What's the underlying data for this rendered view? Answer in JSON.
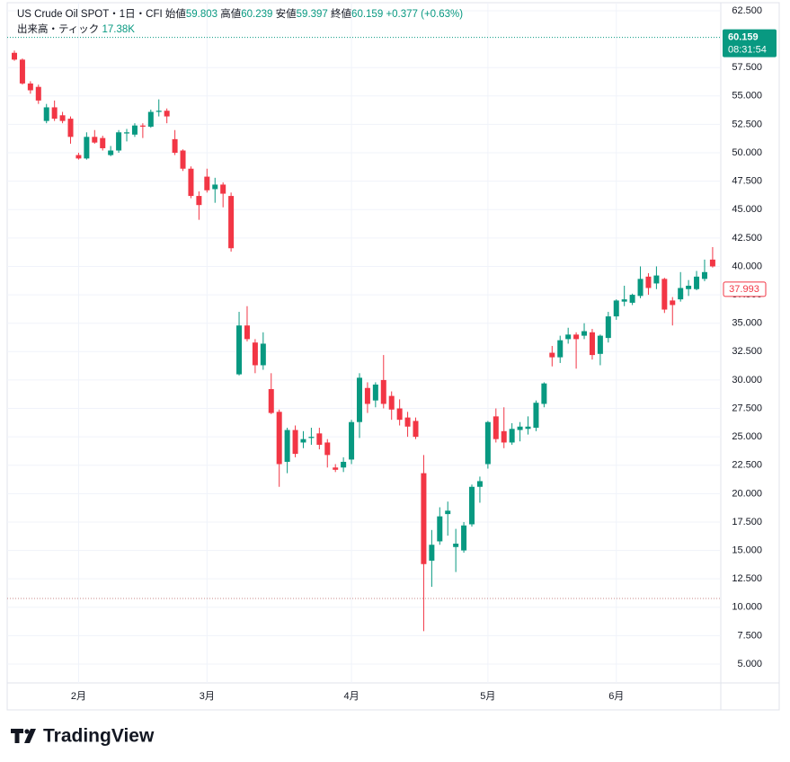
{
  "chart_data": {
    "type": "candlestick",
    "title": "US Crude Oil SPOT・1日・CFI",
    "legend": {
      "open_label": "始値",
      "open": 59.803,
      "high_label": "高値",
      "high": 60.239,
      "low_label": "安値",
      "low": 59.397,
      "close_label": "終値",
      "close": 60.159,
      "change": "+0.377 (+0.63%)"
    },
    "volume_label": "出来高・ティック",
    "volume": "17.38K",
    "last_price": {
      "value": 60.159,
      "time": "08:31:54"
    },
    "marker_price": 37.993,
    "dashed_level": 10.77,
    "up_color": "#089981",
    "down_color": "#f23645",
    "grid": true,
    "ylim": [
      3.34,
      63.21
    ],
    "yticks": [
      {
        "value": 62.5,
        "label": "62.500"
      },
      {
        "value": 57.5,
        "label": "57.500"
      },
      {
        "value": 55,
        "label": "55.000"
      },
      {
        "value": 52.5,
        "label": "52.500"
      },
      {
        "value": 50,
        "label": "50.000"
      },
      {
        "value": 47.5,
        "label": "47.500"
      },
      {
        "value": 45,
        "label": "45.000"
      },
      {
        "value": 42.5,
        "label": "42.500"
      },
      {
        "value": 40,
        "label": "40.000"
      },
      {
        "value": 37.5,
        "label": "37.500"
      },
      {
        "value": 35,
        "label": "35.000"
      },
      {
        "value": 32.5,
        "label": "32.500"
      },
      {
        "value": 30,
        "label": "30.000"
      },
      {
        "value": 27.5,
        "label": "27.500"
      },
      {
        "value": 25,
        "label": "25.000"
      },
      {
        "value": 22.5,
        "label": "22.500"
      },
      {
        "value": 20,
        "label": "20.000"
      },
      {
        "value": 17.5,
        "label": "17.500"
      },
      {
        "value": 15,
        "label": "15.000"
      },
      {
        "value": 12.5,
        "label": "12.500"
      },
      {
        "value": 10,
        "label": "10.000"
      },
      {
        "value": 7.5,
        "label": "7.500"
      },
      {
        "value": 5,
        "label": "5.000"
      }
    ],
    "categories": [
      null,
      null,
      null,
      null,
      null,
      null,
      null,
      null,
      "2月",
      null,
      null,
      null,
      null,
      null,
      null,
      null,
      null,
      null,
      null,
      null,
      null,
      null,
      null,
      null,
      "3月",
      null,
      null,
      null,
      null,
      null,
      null,
      null,
      null,
      null,
      null,
      null,
      null,
      null,
      null,
      null,
      null,
      null,
      "4月",
      null,
      null,
      null,
      null,
      null,
      null,
      null,
      null,
      null,
      null,
      null,
      null,
      null,
      null,
      null,
      null,
      "5月",
      null,
      null,
      null,
      null,
      null,
      null,
      null,
      null,
      null,
      null,
      null,
      null,
      null,
      null,
      null,
      "6月",
      null,
      null,
      null,
      null,
      null,
      null,
      null,
      null,
      null,
      null,
      null,
      null
    ],
    "open": [
      58.8,
      58.2,
      56.1,
      55.8,
      52.8,
      54.0,
      53.3,
      53.0,
      49.8,
      49.5,
      51.4,
      51.3,
      49.8,
      50.2,
      51.7,
      51.6,
      52.4,
      52.3,
      53.6,
      53.7,
      51.2,
      50.2,
      48.6,
      46.2,
      47.9,
      46.8,
      47.2,
      46.2,
      30.5,
      34.8,
      33.3,
      31.3,
      29.2,
      27.2,
      22.8,
      25.6,
      24.5,
      24.9,
      25.3,
      24.5,
      22.3,
      22.3,
      23.0,
      26.3,
      29.3,
      28.2,
      30.0,
      28.6,
      27.5,
      26.7,
      26.4,
      21.8,
      14.1,
      15.8,
      18.2,
      15.3,
      15.0,
      17.3,
      20.6,
      22.6,
      26.8,
      25.5,
      24.5,
      25.6,
      25.7,
      25.8,
      27.9,
      32.4,
      32.0,
      33.6,
      34.0,
      33.9,
      34.2,
      32.3,
      33.7,
      35.6,
      36.9,
      36.8,
      37.4,
      39.1,
      38.5,
      38.9,
      37.0,
      37.1,
      38.0,
      38.0,
      38.9,
      40.6
    ],
    "high": [
      59.0,
      58.3,
      56.3,
      56.0,
      54.3,
      54.6,
      53.6,
      53.2,
      50.0,
      51.8,
      52.0,
      51.5,
      50.6,
      52.0,
      52.1,
      52.6,
      52.6,
      53.8,
      54.7,
      53.9,
      52.0,
      50.3,
      48.8,
      46.6,
      48.6,
      47.8,
      47.4,
      46.5,
      36.0,
      36.5,
      33.6,
      34.2,
      30.6,
      27.4,
      25.8,
      26.0,
      25.5,
      25.8,
      25.8,
      24.8,
      22.6,
      23.2,
      26.5,
      30.6,
      29.8,
      29.8,
      32.2,
      29.0,
      28.3,
      27.2,
      26.7,
      23.4,
      16.8,
      18.8,
      19.3,
      16.9,
      17.5,
      20.8,
      21.5,
      26.4,
      27.5,
      27.6,
      26.2,
      26.3,
      26.8,
      28.2,
      29.8,
      33.0,
      33.9,
      34.6,
      34.2,
      35.0,
      34.5,
      34.0,
      36.0,
      37.1,
      38.3,
      37.6,
      40.0,
      39.4,
      40.0,
      39.0,
      37.3,
      39.5,
      38.8,
      39.6,
      40.6,
      41.7
    ],
    "low": [
      58.1,
      56.0,
      55.2,
      54.3,
      52.6,
      52.8,
      52.6,
      50.8,
      49.4,
      49.4,
      50.8,
      50.2,
      49.7,
      50.0,
      51.0,
      51.4,
      51.3,
      52.2,
      53.2,
      52.6,
      49.8,
      48.4,
      46.0,
      44.1,
      46.5,
      45.6,
      45.2,
      41.3,
      30.4,
      33.4,
      30.6,
      30.9,
      27.0,
      20.6,
      21.8,
      23.2,
      24.0,
      24.3,
      23.9,
      22.3,
      21.9,
      21.9,
      22.6,
      24.9,
      27.1,
      27.6,
      27.5,
      26.5,
      26.0,
      25.0,
      24.8,
      7.9,
      11.8,
      15.5,
      16.3,
      13.1,
      14.8,
      17.1,
      19.2,
      22.2,
      24.5,
      24.0,
      24.3,
      24.6,
      25.2,
      25.5,
      27.6,
      31.2,
      31.5,
      33.2,
      31.0,
      33.6,
      31.8,
      31.3,
      33.3,
      35.3,
      36.5,
      36.6,
      37.2,
      37.5,
      38.0,
      35.9,
      34.8,
      36.9,
      37.4,
      37.9,
      38.7,
      39.9
    ],
    "close": [
      58.2,
      56.1,
      55.5,
      54.6,
      54.0,
      53.0,
      52.8,
      51.4,
      49.5,
      51.4,
      50.9,
      50.4,
      50.2,
      51.8,
      51.8,
      52.4,
      52.3,
      53.6,
      53.7,
      53.2,
      50.0,
      48.6,
      46.2,
      45.4,
      46.7,
      47.2,
      46.4,
      41.6,
      34.8,
      33.6,
      31.3,
      33.2,
      27.1,
      22.6,
      25.6,
      23.5,
      24.8,
      25.0,
      24.3,
      23.4,
      22.1,
      22.8,
      26.3,
      30.2,
      27.9,
      29.6,
      27.9,
      27.4,
      26.5,
      25.9,
      25.0,
      13.8,
      15.5,
      18.0,
      18.5,
      15.6,
      17.2,
      20.6,
      21.1,
      26.3,
      24.8,
      24.5,
      25.7,
      25.9,
      25.9,
      28.0,
      29.7,
      32.0,
      33.5,
      34.0,
      33.6,
      34.3,
      32.2,
      33.9,
      35.6,
      37.0,
      37.1,
      37.5,
      38.9,
      38.1,
      39.2,
      36.2,
      36.6,
      38.1,
      38.3,
      39.1,
      39.5,
      40.0
    ],
    "brand": "TradingView"
  }
}
